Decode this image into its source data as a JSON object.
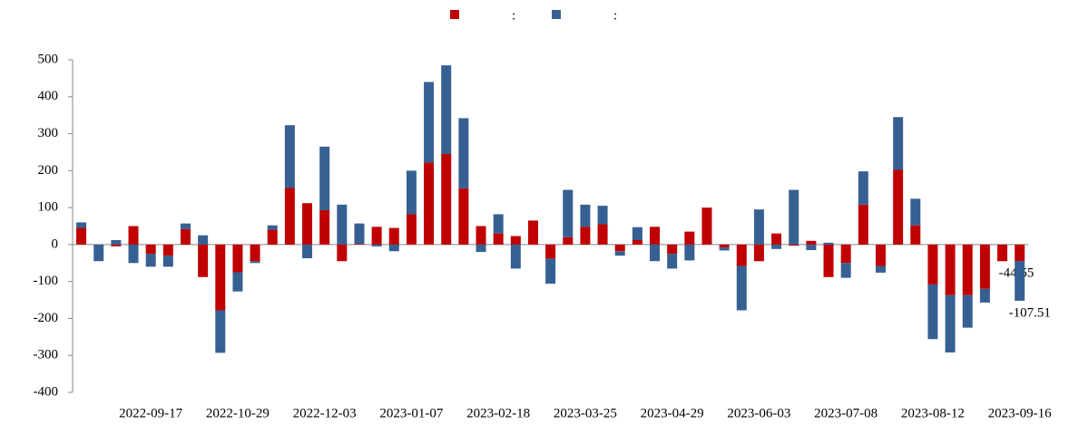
{
  "chart_data": {
    "type": "stacked_bar",
    "categories": [
      null,
      null,
      null,
      null,
      "2022-09-17",
      null,
      null,
      null,
      null,
      "2022-10-29",
      null,
      null,
      null,
      null,
      "2022-12-03",
      null,
      null,
      null,
      null,
      "2023-01-07",
      null,
      null,
      null,
      null,
      "2023-02-18",
      null,
      null,
      null,
      null,
      "2023-03-25",
      null,
      null,
      null,
      null,
      "2023-04-29",
      null,
      null,
      null,
      null,
      "2023-06-03",
      null,
      null,
      null,
      null,
      "2023-07-08",
      null,
      null,
      null,
      null,
      "2023-08-12",
      null,
      null,
      null,
      null,
      "2023-09-16"
    ],
    "series": [
      {
        "name": ":",
        "color": "#c00000",
        "values": [
          45,
          0,
          -5,
          50,
          -25,
          -30,
          42,
          -88,
          -178,
          -75,
          -45,
          40,
          153,
          112,
          93,
          -45,
          2,
          48,
          45,
          82,
          222,
          245,
          152,
          50,
          30,
          23,
          65,
          -38,
          20,
          48,
          55,
          -18,
          12,
          48,
          -25,
          35,
          100,
          -8,
          -58,
          -45,
          30,
          -3,
          10,
          -88,
          -50,
          108,
          -58,
          202,
          52,
          -108,
          -137,
          -137,
          -120,
          -45,
          -44.55
        ]
      },
      {
        "name": ":",
        "color": "#376092",
        "values": [
          15,
          -45,
          12,
          -50,
          -35,
          -30,
          15,
          25,
          -115,
          -52,
          -5,
          12,
          170,
          -37,
          172,
          108,
          55,
          -5,
          -18,
          118,
          218,
          240,
          190,
          -20,
          52,
          -65,
          0,
          -68,
          128,
          60,
          50,
          -12,
          35,
          -45,
          -40,
          -43,
          0,
          -8,
          -120,
          95,
          -12,
          148,
          -15,
          5,
          -40,
          90,
          -18,
          143,
          72,
          -148,
          -155,
          -88,
          -37,
          0,
          -107.51
        ]
      }
    ],
    "ylim": [
      -400,
      500
    ],
    "yticks": [
      -400,
      -300,
      -200,
      -100,
      0,
      100,
      200,
      300,
      400,
      500
    ],
    "data_labels": "last",
    "legend": "top"
  }
}
